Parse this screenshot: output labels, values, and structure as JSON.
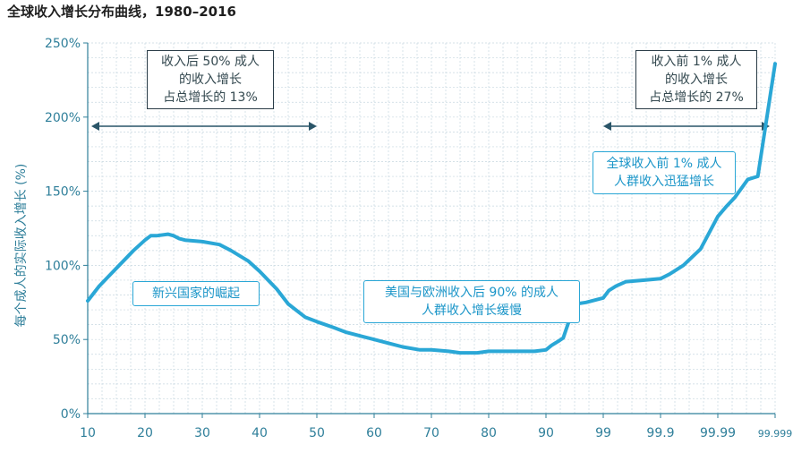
{
  "colors": {
    "curve": "#2aa7d6",
    "grid": "#c7d7e0",
    "axis": "#2f7f9a",
    "arrow": "#2a5568",
    "box_border": "#2a3c47",
    "callout_border": "#2aa7d6"
  },
  "chart_data": {
    "type": "line",
    "title": "全球收入增长分布曲线，1980–2016",
    "ylabel": "每个成人的实际收入增长 (%)",
    "xlabel": "",
    "ylim": [
      0,
      250
    ],
    "y_ticks": [
      "0%",
      "50%",
      "100%",
      "150%",
      "200%",
      "250%"
    ],
    "x_ticks": [
      "10",
      "20",
      "30",
      "40",
      "50",
      "60",
      "70",
      "80",
      "90",
      "99",
      "99.9",
      "99.99",
      "99.999"
    ],
    "grid": true,
    "series": [
      {
        "x": [
          10,
          12,
          15,
          18,
          20,
          21,
          22,
          24,
          25,
          26,
          27,
          30,
          33,
          35,
          38,
          40,
          43,
          45,
          48,
          50,
          53,
          55,
          58,
          60,
          63,
          65,
          68,
          70,
          73,
          75,
          78,
          80,
          82,
          85,
          88,
          90,
          92,
          94,
          95,
          96,
          97,
          98,
          99,
          99.2,
          99.4,
          99.6,
          99.8,
          99.9,
          99.93,
          99.96,
          99.98,
          99.99,
          99.993,
          99.995,
          99.997,
          99.998,
          99.999
        ],
        "y": [
          76,
          86,
          98,
          110,
          117,
          120,
          120,
          121,
          120,
          118,
          117,
          116,
          114,
          110,
          103,
          96,
          84,
          74,
          65,
          62,
          58,
          55,
          52,
          50,
          47,
          45,
          43,
          43,
          42,
          41,
          41,
          42,
          42,
          42,
          42,
          43,
          46,
          49,
          51,
          62,
          74,
          75,
          78,
          83,
          86,
          89,
          90,
          91,
          94,
          100,
          111,
          133,
          140,
          146,
          158,
          160,
          236
        ]
      }
    ],
    "annotations": {
      "bottom_half": [
        "收入后 50% 成人",
        "的收入增长",
        "占总增长的 13%"
      ],
      "top_one": [
        "收入前 1% 成人",
        "的收入增长",
        "占总增长的 27%"
      ],
      "emerging": [
        "新兴国家的崛起"
      ],
      "west": [
        "美国与欧洲收入后 90% 的成人",
        "人群收入增长缓慢"
      ],
      "top_surge": [
        "全球收入前 1% 成人",
        "人群收入迅猛增长"
      ]
    }
  }
}
